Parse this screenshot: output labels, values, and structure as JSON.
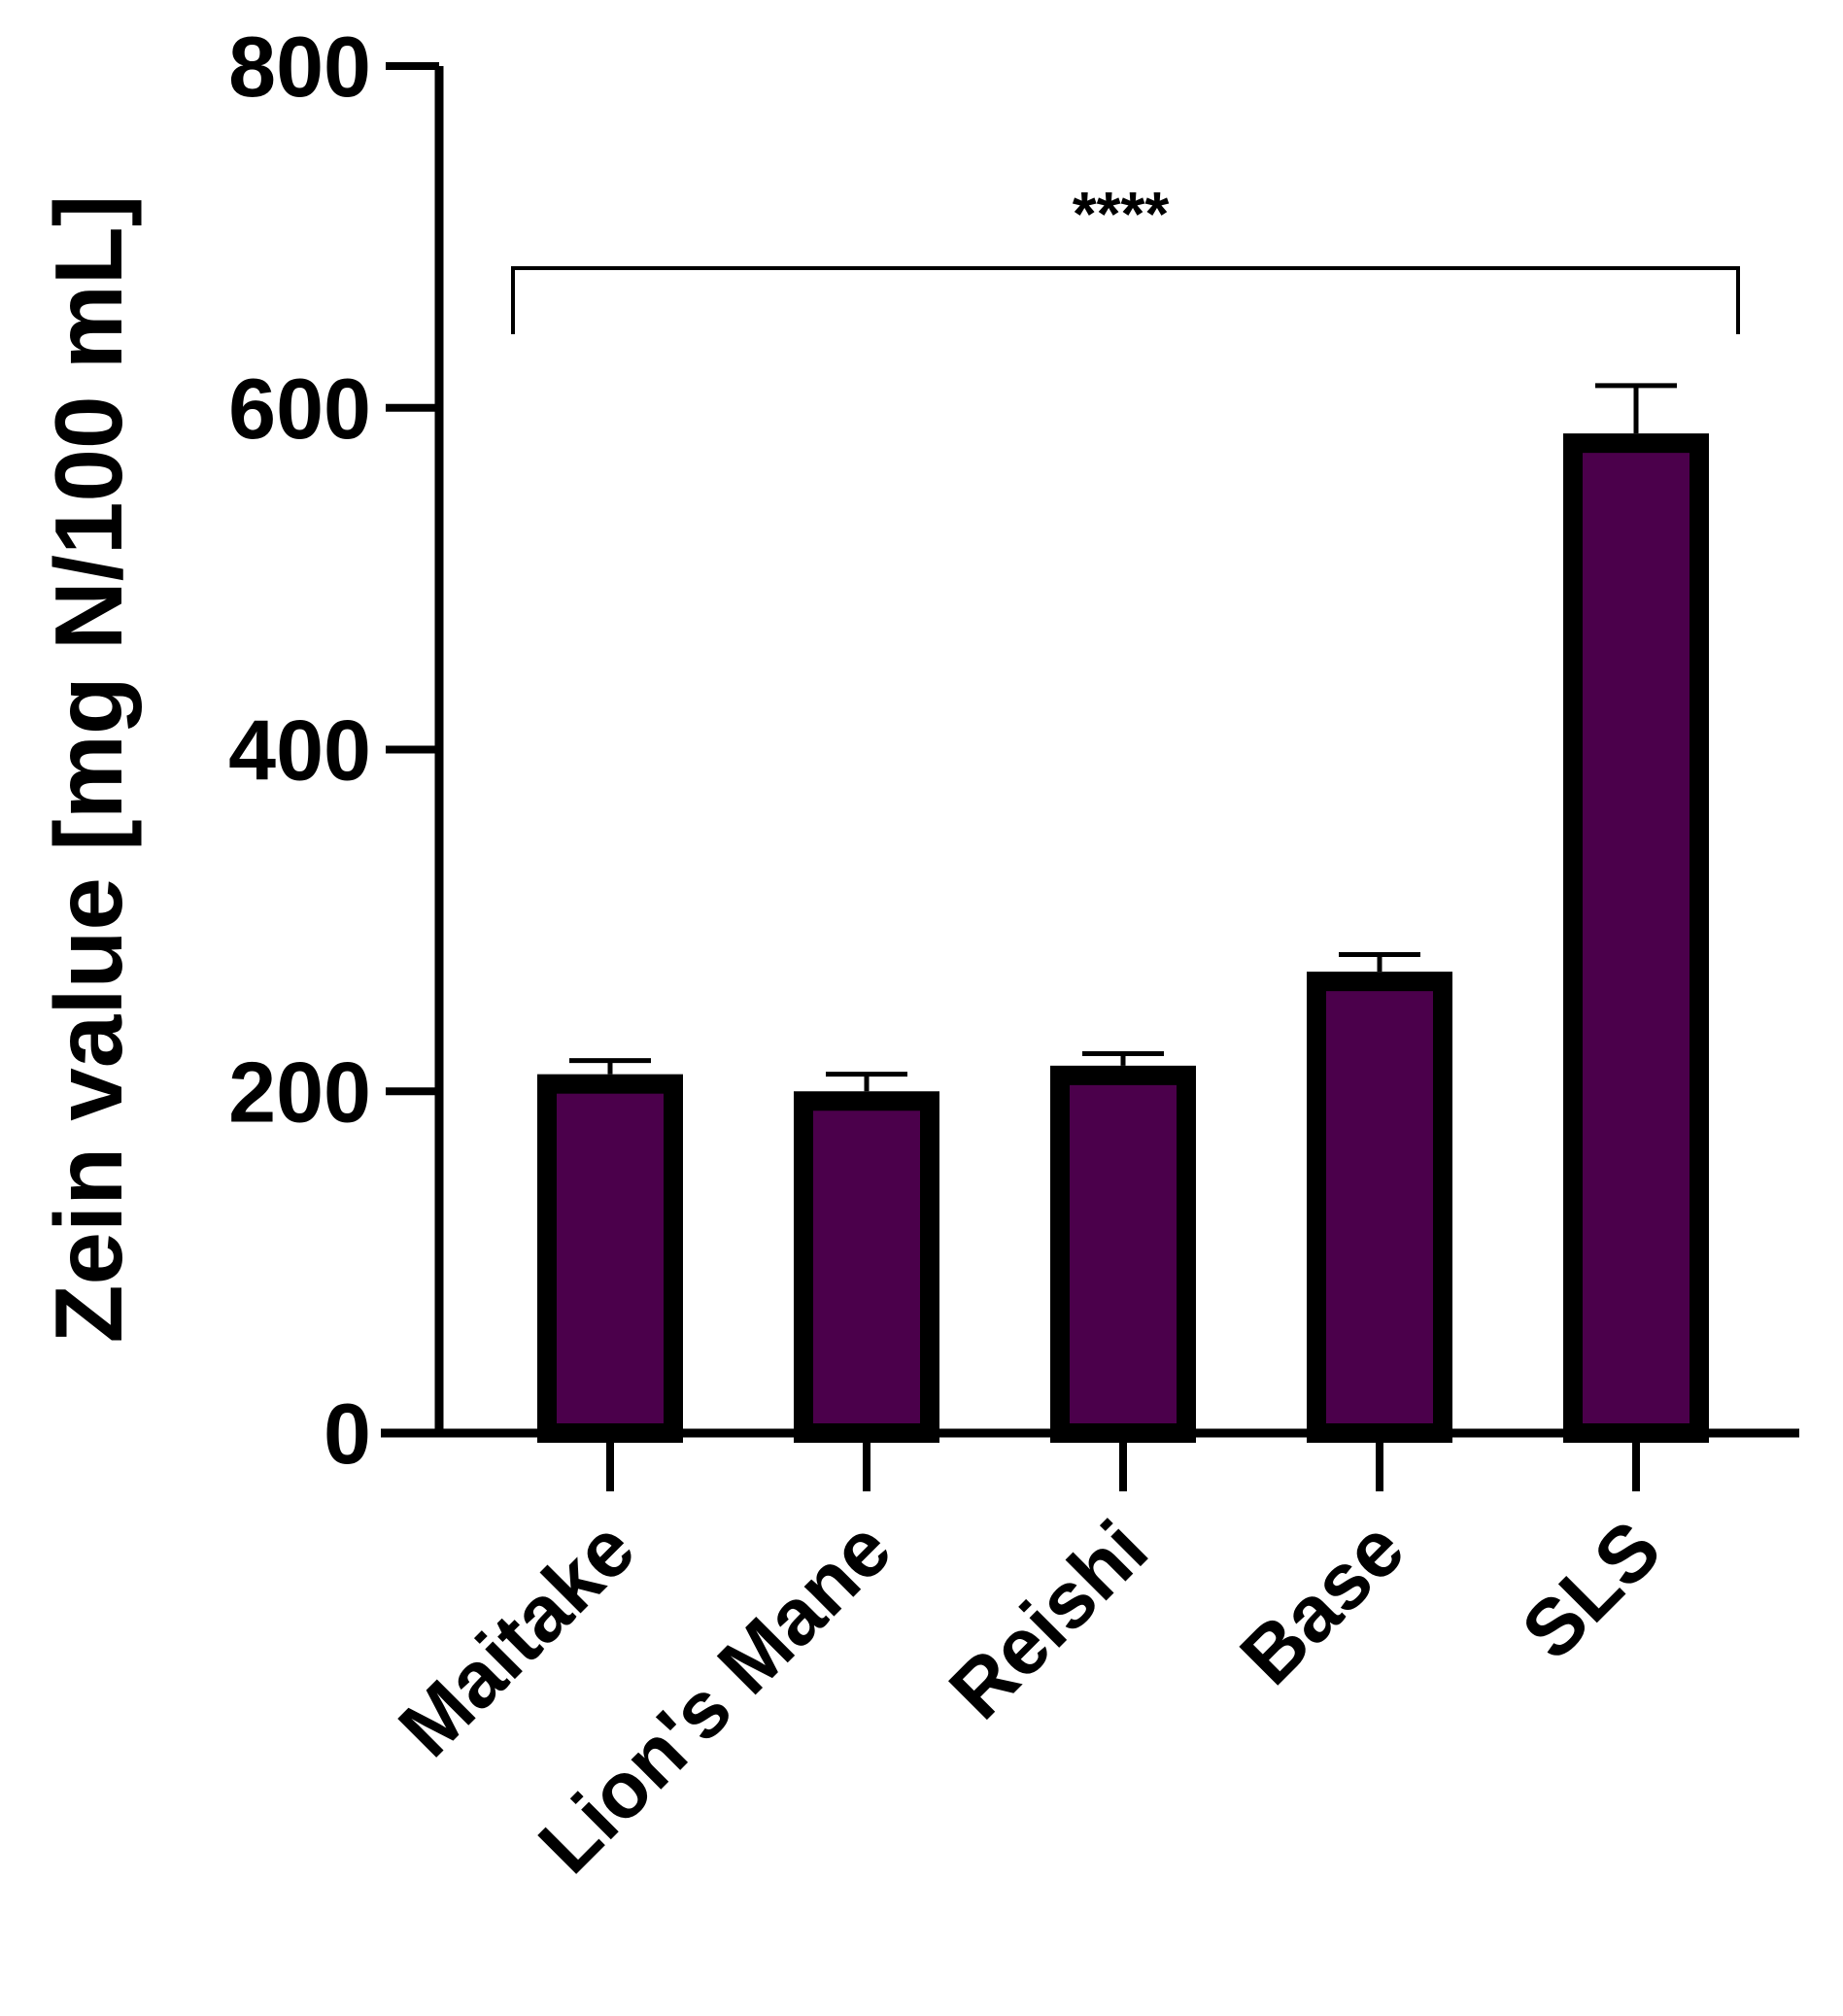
{
  "chart_data": {
    "type": "bar",
    "categories": [
      "Maitake",
      "Lion's Mane",
      "Reishi",
      "Base",
      "SLS"
    ],
    "values": [
      210,
      200,
      215,
      270,
      585
    ],
    "errors": [
      8,
      10,
      7,
      10,
      28
    ],
    "ylabel": "Zein value [mg N/100 mL]",
    "xlabel": "",
    "ylim": [
      0,
      800
    ],
    "yticks": [
      0,
      200,
      400,
      600,
      800
    ],
    "bar_color": "#4b004b",
    "bar_edge_color": "#000000",
    "significance": {
      "label": "****",
      "from_category": "Maitake",
      "to_category": "SLS",
      "level": 680
    },
    "grid": false,
    "legend": "none"
  }
}
